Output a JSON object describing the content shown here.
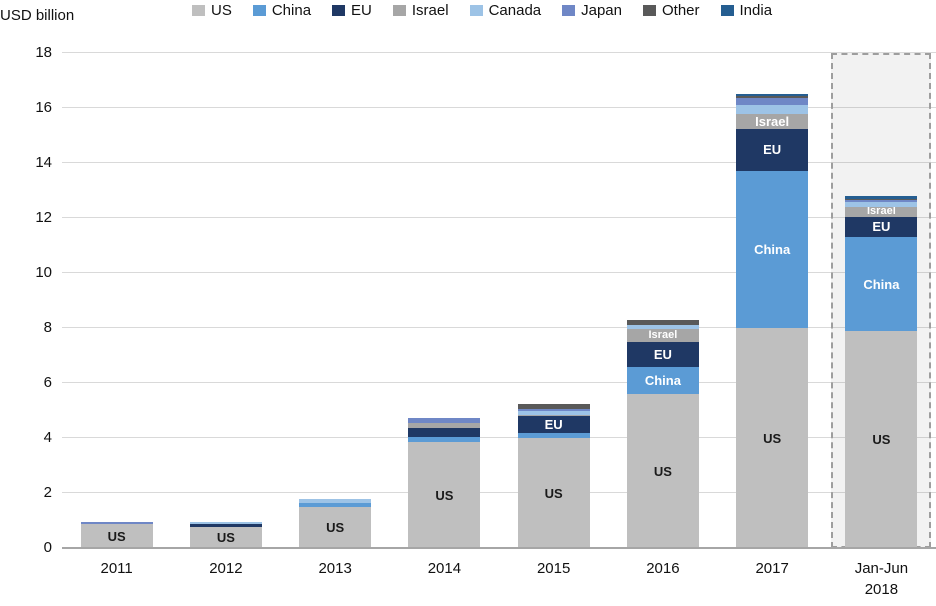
{
  "header": {
    "unit_label": "USD billion"
  },
  "legend": [
    {
      "label": "US",
      "color": "#bfbfbf"
    },
    {
      "label": "China",
      "color": "#5b9bd5"
    },
    {
      "label": "EU",
      "color": "#1f3864"
    },
    {
      "label": "Israel",
      "color": "#a6a6a6"
    },
    {
      "label": "Canada",
      "color": "#9dc3e6"
    },
    {
      "label": "Japan",
      "color": "#6f87c6"
    },
    {
      "label": "Other",
      "color": "#595959"
    },
    {
      "label": "India",
      "color": "#255e91"
    }
  ],
  "chart_data": {
    "type": "bar",
    "stacked": true,
    "title": "",
    "ylabel": "USD billion",
    "xlabel": "",
    "ylim": [
      0,
      18
    ],
    "yticks": [
      0,
      2,
      4,
      6,
      8,
      10,
      12,
      14,
      16,
      18
    ],
    "grid": true,
    "legend_position": "top",
    "categories": [
      "2011",
      "2012",
      "2013",
      "2014",
      "2015",
      "2016",
      "2017",
      "Jan-Jun\n2018"
    ],
    "series": [
      {
        "name": "US",
        "color": "#bfbfbf",
        "label_color": "#1a1a1a",
        "values": [
          0.87,
          0.76,
          1.5,
          3.85,
          4.0,
          5.6,
          8.0,
          7.9
        ],
        "labels_at": [
          0,
          1,
          2,
          3,
          4,
          5,
          6,
          7
        ]
      },
      {
        "name": "China",
        "color": "#5b9bd5",
        "label_color": "#ffffff",
        "values": [
          0,
          0,
          0.15,
          0.2,
          0.2,
          1.0,
          5.7,
          3.4
        ],
        "labels_at": [
          5,
          6,
          7
        ]
      },
      {
        "name": "EU",
        "color": "#1f3864",
        "label_color": "#ffffff",
        "values": [
          0,
          0.1,
          0,
          0.33,
          0.6,
          0.9,
          1.55,
          0.75
        ],
        "labels_at": [
          4,
          5,
          6,
          7
        ]
      },
      {
        "name": "Israel",
        "color": "#a6a6a6",
        "label_color": "#ffffff",
        "values": [
          0,
          0,
          0,
          0.17,
          0.05,
          0.45,
          0.55,
          0.35
        ],
        "labels_at": [
          5,
          6,
          7
        ]
      },
      {
        "name": "Canada",
        "color": "#9dc3e6",
        "label_color": "#ffffff",
        "values": [
          0,
          0.1,
          0.15,
          0,
          0.12,
          0.15,
          0.3,
          0.2
        ],
        "labels_at": []
      },
      {
        "name": "Japan",
        "color": "#6f87c6",
        "label_color": "#ffffff",
        "values": [
          0.08,
          0,
          0,
          0.17,
          0.1,
          0,
          0.25,
          0.05
        ],
        "labels_at": []
      },
      {
        "name": "Other",
        "color": "#595959",
        "label_color": "#ffffff",
        "values": [
          0,
          0,
          0,
          0,
          0.15,
          0.2,
          0.08,
          0.05
        ],
        "labels_at": []
      },
      {
        "name": "India",
        "color": "#255e91",
        "label_color": "#ffffff",
        "values": [
          0,
          0,
          0,
          0,
          0,
          0,
          0.07,
          0.1
        ],
        "labels_at": []
      }
    ],
    "totals": [
      0.95,
      0.96,
      1.8,
      4.72,
      5.22,
      8.3,
      16.5,
      12.8
    ],
    "highlight_last_category": true
  }
}
